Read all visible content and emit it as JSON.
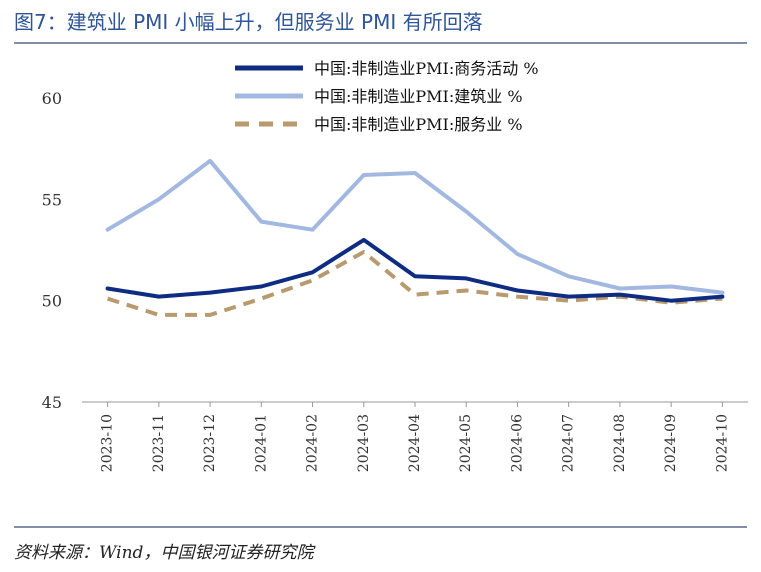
{
  "title": "图7：建筑业 PMI 小幅上升，但服务业 PMI 有所回落",
  "source": "资料来源：Wind，中国银河证券研究院",
  "chart_data": {
    "type": "line",
    "x": [
      "2023-10",
      "2023-11",
      "2023-12",
      "2024-01",
      "2024-02",
      "2024-03",
      "2024-04",
      "2024-05",
      "2024-06",
      "2024-07",
      "2024-08",
      "2024-09",
      "2024-10"
    ],
    "ylim": [
      45,
      60
    ],
    "yticks": [
      45,
      50,
      55,
      60
    ],
    "grid": false,
    "legend_position": "top",
    "series": [
      {
        "name": "中国:非制造业PMI:商务活动 %",
        "color": "#0e2c82",
        "dash": "solid",
        "values": [
          50.6,
          50.2,
          50.4,
          50.7,
          51.4,
          53.0,
          51.2,
          51.1,
          50.5,
          50.2,
          50.3,
          50.0,
          50.2
        ]
      },
      {
        "name": "中国:非制造业PMI:建筑业 %",
        "color": "#a3b8e0",
        "dash": "solid",
        "values": [
          53.5,
          55.0,
          56.9,
          53.9,
          53.5,
          56.2,
          56.3,
          54.4,
          52.3,
          51.2,
          50.6,
          50.7,
          50.4
        ]
      },
      {
        "name": "中国:非制造业PMI:服务业 %",
        "color": "#b89a6e",
        "dash": "dashed",
        "values": [
          50.1,
          49.3,
          49.3,
          50.1,
          51.0,
          52.4,
          50.3,
          50.5,
          50.2,
          50.0,
          50.2,
          49.9,
          50.1
        ]
      }
    ]
  }
}
